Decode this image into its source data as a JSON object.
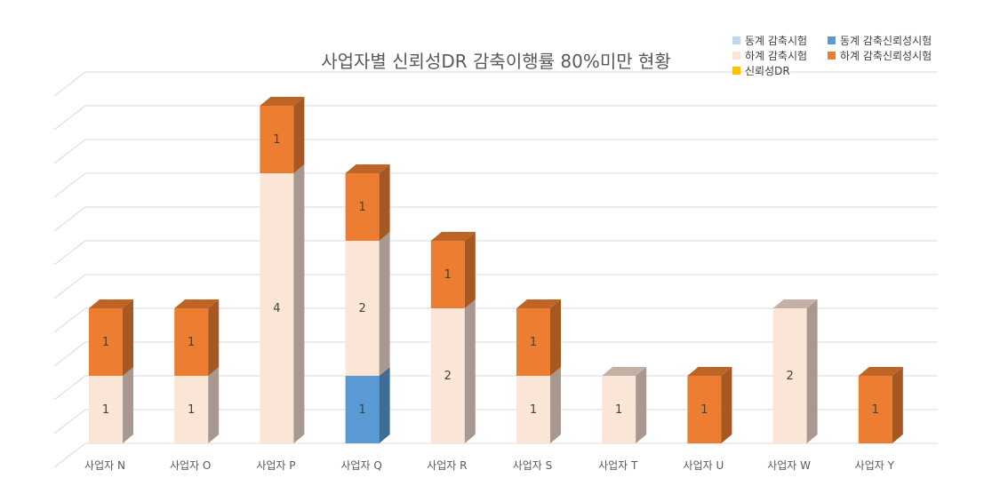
{
  "chart_data": {
    "type": "bar",
    "stacked": true,
    "style": "3d",
    "title": "사업자별 신뢰성DR 감축이행률 80%미만 현황",
    "xlabel": "",
    "ylabel": "",
    "ylim": [
      0,
      5.25
    ],
    "y_gridline_step": 0.5,
    "y_tick_labels_shown": false,
    "grid": true,
    "legend_position": "top-right",
    "categories": [
      "사업자 N",
      "사업자 O",
      "사업자 P",
      "사업자 Q",
      "사업자 R",
      "사업자 S",
      "사업자 T",
      "사업자 U",
      "사업자 W",
      "사업자 Y"
    ],
    "series": [
      {
        "name": "동계 감축시험",
        "color": "#bdd7ee",
        "values": [
          0,
          0,
          0,
          0,
          0,
          0,
          0,
          0,
          0,
          0
        ]
      },
      {
        "name": "동계 감축신뢰성시험",
        "color": "#5b9bd5",
        "values": [
          0,
          0,
          0,
          1,
          0,
          0,
          0,
          0,
          0,
          0
        ]
      },
      {
        "name": "하계 감축시험",
        "color": "#fbe5d6",
        "values": [
          1,
          1,
          4,
          2,
          2,
          1,
          1,
          0,
          2,
          0
        ]
      },
      {
        "name": "하계 감축신뢰성시험",
        "color": "#ed7d31",
        "values": [
          1,
          1,
          1,
          1,
          1,
          1,
          0,
          1,
          0,
          1
        ]
      },
      {
        "name": "신뢰성DR",
        "color": "#ffc000",
        "values": [
          0,
          0,
          0,
          0,
          0,
          0,
          0,
          0,
          0,
          0
        ]
      }
    ]
  }
}
